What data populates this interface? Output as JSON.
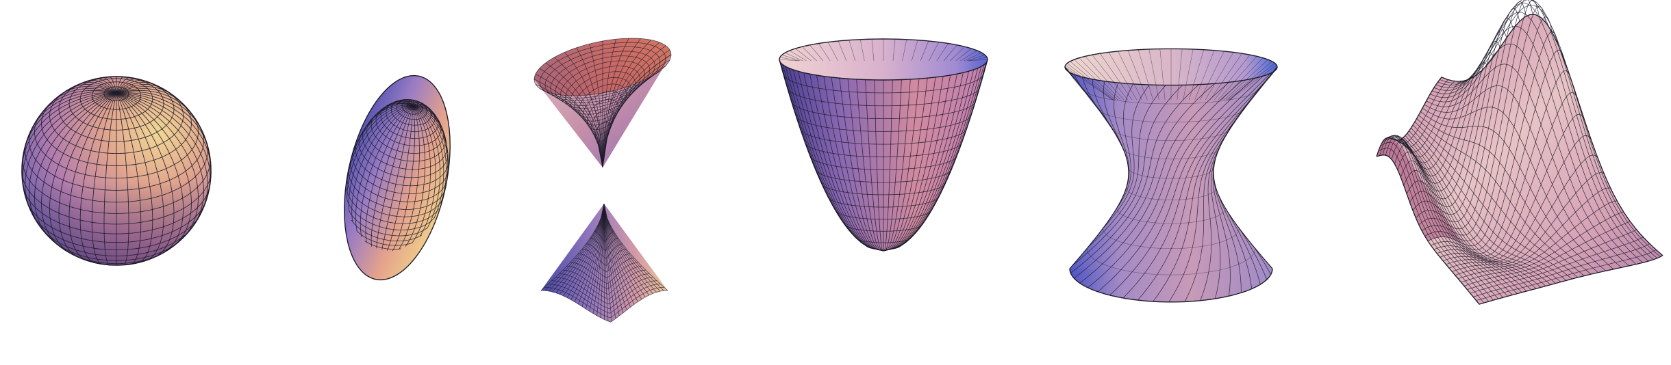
{
  "figure": {
    "background": "#ffffff",
    "line_color": "#1e1c2a",
    "palette": {
      "blue": "#4b4fae",
      "violet": "#8c72c0",
      "pink": "#c98aa8",
      "peach": "#e7a88c",
      "gold": "#ecd088",
      "shadow": "#2e2040"
    },
    "surfaces": [
      {
        "name": "sphere"
      },
      {
        "name": "ellipsoid"
      },
      {
        "name": "hyperboloid-of-two-sheets"
      },
      {
        "name": "elliptic-paraboloid"
      },
      {
        "name": "hyperboloid-of-one-sheet"
      },
      {
        "name": "hyperbolic-paraboloid"
      }
    ]
  }
}
